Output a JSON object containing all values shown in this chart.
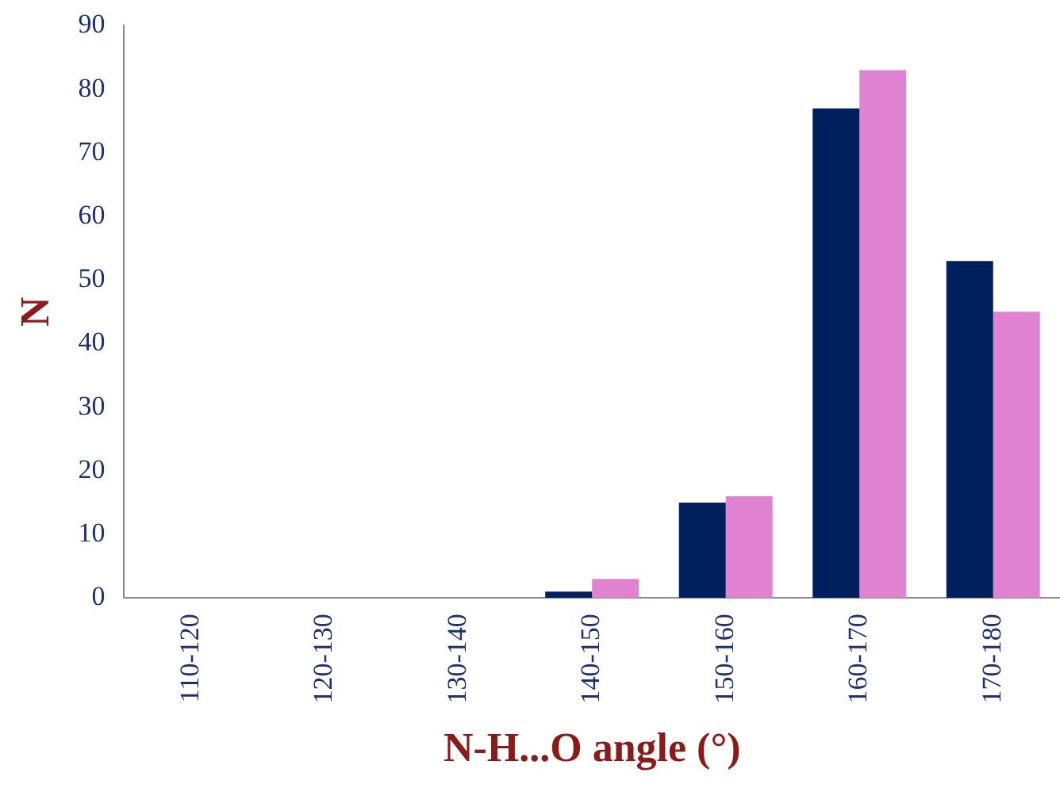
{
  "chart_data": {
    "type": "bar",
    "xlabel": "N-H...O angle (°)",
    "ylabel": "N",
    "categories": [
      "110-120",
      "120-130",
      "130-140",
      "140-150",
      "150-160",
      "160-170",
      "170-180"
    ],
    "series": [
      {
        "color": "#001f5c",
        "values": [
          0,
          0,
          0,
          1,
          15,
          77,
          53
        ]
      },
      {
        "color": "#e083d2",
        "values": [
          0,
          0,
          0,
          3,
          16,
          83,
          45
        ]
      }
    ],
    "ylim": [
      0,
      90
    ],
    "yticks": [
      0,
      10,
      20,
      30,
      40,
      50,
      60,
      70,
      80,
      90
    ],
    "grid": false,
    "legend": false
  }
}
